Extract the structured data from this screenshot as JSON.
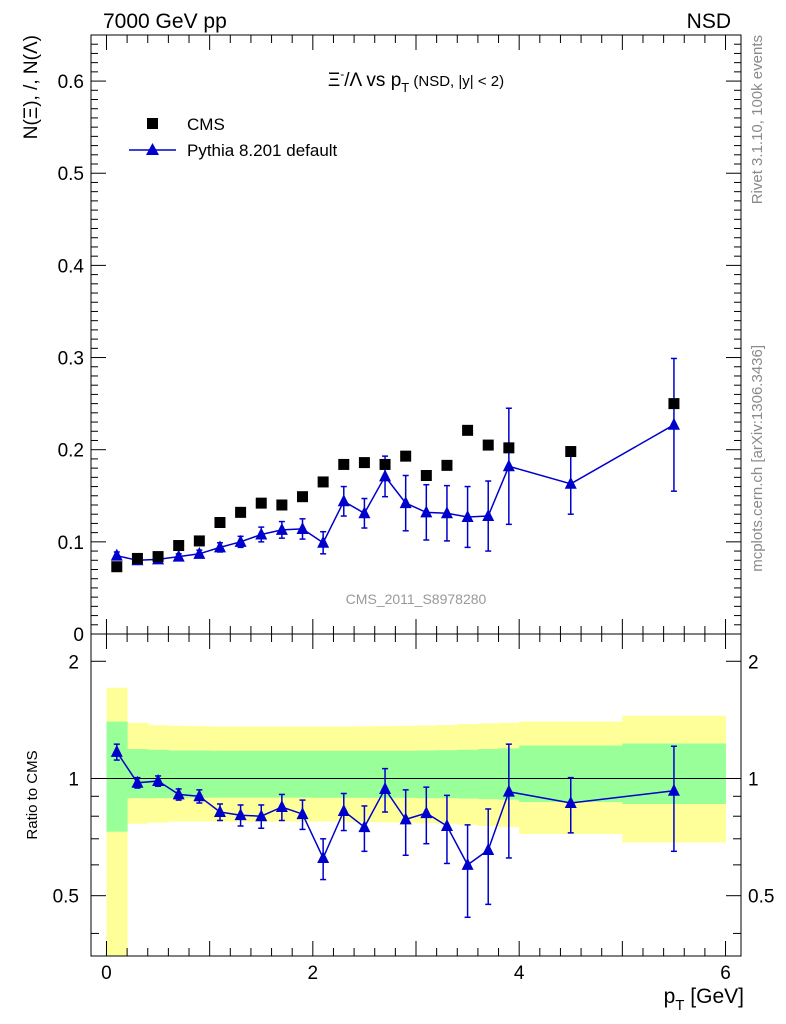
{
  "header": {
    "left": "7000 GeV pp",
    "right": "NSD"
  },
  "side_labels": {
    "rivet": "Rivet 3.1.10,  100k events",
    "mcplots": "mcplots.cern.ch [arXiv:1306.3436]"
  },
  "colors": {
    "data": "#000000",
    "mc": "#0000cc",
    "band_inner": "#99ff99",
    "band_outer": "#ffff99",
    "watermark": "#999999"
  },
  "chart_data": [
    {
      "type": "scatter",
      "title_parts": {
        "main": "Ξ",
        "sup": "-",
        "slash": "/Λ  vs p",
        "sub": "T",
        "tail": " (NSD, |y| < 2)"
      },
      "ylabel": "N(Ξ), /, N(Λ)",
      "watermark": "CMS_2011_S8978280",
      "xlim": [
        -0.15,
        6.15
      ],
      "ylim": [
        0,
        0.65
      ],
      "yticks": [
        {
          "v": 0,
          "label": "0"
        },
        {
          "v": 0.1,
          "label": "0.1"
        },
        {
          "v": 0.2,
          "label": "0.2"
        },
        {
          "v": 0.3,
          "label": "0.3"
        },
        {
          "v": 0.4,
          "label": "0.4"
        },
        {
          "v": 0.5,
          "label": "0.5"
        },
        {
          "v": 0.6,
          "label": "0.6"
        }
      ],
      "legend": {
        "position": "top-left",
        "entries": [
          "CMS",
          "Pythia 8.201 default"
        ]
      },
      "series": [
        {
          "name": "CMS",
          "marker": "square",
          "x": [
            0.1,
            0.3,
            0.5,
            0.7,
            0.9,
            1.1,
            1.3,
            1.5,
            1.7,
            1.9,
            2.1,
            2.3,
            2.5,
            2.7,
            2.9,
            3.1,
            3.3,
            3.5,
            3.7,
            3.9,
            4.5,
            5.5
          ],
          "y": [
            0.073,
            0.082,
            0.084,
            0.096,
            0.101,
            0.121,
            0.132,
            0.142,
            0.14,
            0.149,
            0.165,
            0.184,
            0.186,
            0.184,
            0.193,
            0.172,
            0.183,
            0.221,
            0.205,
            0.202,
            0.198,
            0.25
          ]
        },
        {
          "name": "Pythia 8.201 default",
          "marker": "triangle",
          "x": [
            0.1,
            0.3,
            0.5,
            0.7,
            0.9,
            1.1,
            1.3,
            1.5,
            1.7,
            1.9,
            2.1,
            2.3,
            2.5,
            2.7,
            2.9,
            3.1,
            3.3,
            3.5,
            3.7,
            3.9,
            4.5,
            5.5
          ],
          "y": [
            0.085,
            0.08,
            0.081,
            0.084,
            0.087,
            0.094,
            0.1,
            0.108,
            0.113,
            0.114,
            0.099,
            0.144,
            0.131,
            0.171,
            0.142,
            0.132,
            0.131,
            0.127,
            0.128,
            0.182,
            0.163,
            0.227
          ],
          "yerr": [
            0.004,
            0.003,
            0.003,
            0.003,
            0.004,
            0.005,
            0.006,
            0.008,
            0.009,
            0.011,
            0.012,
            0.016,
            0.016,
            0.022,
            0.03,
            0.03,
            0.03,
            0.033,
            0.038,
            0.063,
            0.033,
            0.072
          ]
        }
      ]
    },
    {
      "type": "scatter",
      "ylabel": "Ratio to CMS",
      "xlabel_parts": {
        "main": "p",
        "sub": "T",
        "tail": " [GeV]"
      },
      "xlim": [
        -0.15,
        6.15
      ],
      "ylim": [
        0.35,
        2.35
      ],
      "ylog": true,
      "xticks": [
        {
          "v": 0,
          "label": "0"
        },
        {
          "v": 2,
          "label": "2"
        },
        {
          "v": 4,
          "label": "4"
        },
        {
          "v": 6,
          "label": "6"
        }
      ],
      "yticks": [
        {
          "v": 0.5,
          "label": "0.5"
        },
        {
          "v": 1,
          "label": "1"
        },
        {
          "v": 2,
          "label": "2"
        }
      ],
      "reference_line": 1,
      "bands": {
        "x_edges": [
          0,
          0.2,
          0.4,
          0.6,
          0.8,
          1.0,
          1.2,
          1.4,
          1.6,
          1.8,
          2.0,
          2.2,
          2.4,
          2.6,
          2.8,
          3.0,
          3.2,
          3.4,
          3.6,
          3.8,
          4.0,
          5.0,
          6.0
        ],
        "inner": [
          [
            0.73,
            1.4
          ],
          [
            0.89,
            1.19
          ],
          [
            0.89,
            1.185
          ],
          [
            0.892,
            1.18
          ],
          [
            0.892,
            1.18
          ],
          [
            0.893,
            1.178
          ],
          [
            0.893,
            1.178
          ],
          [
            0.893,
            1.178
          ],
          [
            0.893,
            1.178
          ],
          [
            0.893,
            1.178
          ],
          [
            0.892,
            1.178
          ],
          [
            0.892,
            1.178
          ],
          [
            0.892,
            1.178
          ],
          [
            0.892,
            1.178
          ],
          [
            0.892,
            1.178
          ],
          [
            0.89,
            1.18
          ],
          [
            0.89,
            1.182
          ],
          [
            0.888,
            1.185
          ],
          [
            0.885,
            1.19
          ],
          [
            0.882,
            1.195
          ],
          [
            0.87,
            1.215
          ],
          [
            0.86,
            1.23
          ]
        ],
        "outer": [
          [
            0.3,
            1.71
          ],
          [
            0.765,
            1.39
          ],
          [
            0.77,
            1.37
          ],
          [
            0.775,
            1.365
          ],
          [
            0.775,
            1.363
          ],
          [
            0.775,
            1.36
          ],
          [
            0.775,
            1.36
          ],
          [
            0.775,
            1.36
          ],
          [
            0.775,
            1.36
          ],
          [
            0.775,
            1.36
          ],
          [
            0.775,
            1.36
          ],
          [
            0.775,
            1.36
          ],
          [
            0.773,
            1.362
          ],
          [
            0.772,
            1.363
          ],
          [
            0.77,
            1.365
          ],
          [
            0.768,
            1.368
          ],
          [
            0.765,
            1.372
          ],
          [
            0.76,
            1.38
          ],
          [
            0.755,
            1.385
          ],
          [
            0.75,
            1.39
          ],
          [
            0.72,
            1.4
          ],
          [
            0.685,
            1.45
          ]
        ]
      },
      "series": [
        {
          "name": "Pythia 8.201 default",
          "marker": "triangle",
          "x": [
            0.1,
            0.3,
            0.5,
            0.7,
            0.9,
            1.1,
            1.3,
            1.5,
            1.7,
            1.9,
            2.1,
            2.3,
            2.5,
            2.7,
            2.9,
            3.1,
            3.3,
            3.5,
            3.7,
            3.9,
            4.5,
            5.5
          ],
          "y": [
            1.17,
            0.975,
            0.985,
            0.91,
            0.9,
            0.82,
            0.805,
            0.8,
            0.845,
            0.81,
            0.625,
            0.825,
            0.75,
            0.94,
            0.785,
            0.815,
            0.755,
            0.6,
            0.655,
            0.925,
            0.865,
            0.93
          ],
          "yerr": [
            0.055,
            0.03,
            0.03,
            0.03,
            0.035,
            0.04,
            0.05,
            0.055,
            0.065,
            0.07,
            0.075,
            0.09,
            0.1,
            0.12,
            0.15,
            0.135,
            0.15,
            0.16,
            0.18,
            0.3,
            0.14,
            0.28
          ]
        }
      ]
    }
  ]
}
